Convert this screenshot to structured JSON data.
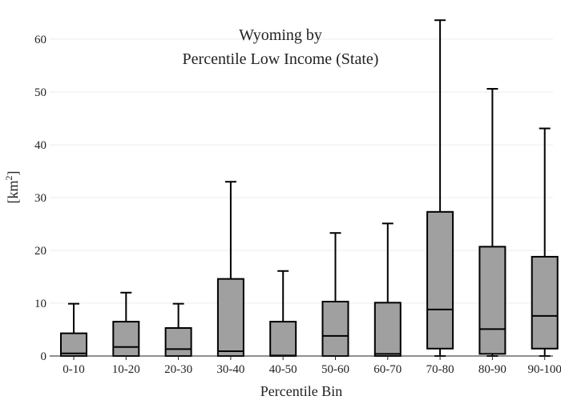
{
  "chart_data": {
    "type": "box",
    "title_line1": "Wyoming  by",
    "title_line2": "Percentile Low Income (State)",
    "xlabel": "Percentile Bin",
    "ylabel": "[km",
    "ylabel_sup": "2",
    "ylabel_close": "]",
    "ylim": [
      0,
      64
    ],
    "yticks": [
      0,
      10,
      20,
      30,
      40,
      50,
      60
    ],
    "grid": true,
    "box_color": "#a0a0a0",
    "categories": [
      "0-10",
      "10-20",
      "20-30",
      "30-40",
      "40-50",
      "50-60",
      "60-70",
      "70-80",
      "80-90",
      "90-100"
    ],
    "boxes": [
      {
        "min": 0,
        "q1": 0,
        "median": 0.5,
        "q3": 4.3,
        "max": 9.9
      },
      {
        "min": 0,
        "q1": 0,
        "median": 1.7,
        "q3": 6.5,
        "max": 12.0
      },
      {
        "min": 0,
        "q1": 0,
        "median": 1.3,
        "q3": 5.3,
        "max": 9.9
      },
      {
        "min": 0,
        "q1": 0,
        "median": 0.9,
        "q3": 14.6,
        "max": 33.0
      },
      {
        "min": 0,
        "q1": 0,
        "median": 0.1,
        "q3": 6.5,
        "max": 16.1
      },
      {
        "min": 0,
        "q1": 0,
        "median": 3.8,
        "q3": 10.3,
        "max": 23.3
      },
      {
        "min": 0,
        "q1": 0,
        "median": 0.4,
        "q3": 10.1,
        "max": 25.1
      },
      {
        "min": 0,
        "q1": 1.4,
        "median": 8.8,
        "q3": 27.3,
        "max": 63.6
      },
      {
        "min": 0,
        "q1": 0.4,
        "median": 5.1,
        "q3": 20.7,
        "max": 50.6
      },
      {
        "min": 0,
        "q1": 1.4,
        "median": 7.6,
        "q3": 18.8,
        "max": 43.1
      }
    ]
  }
}
